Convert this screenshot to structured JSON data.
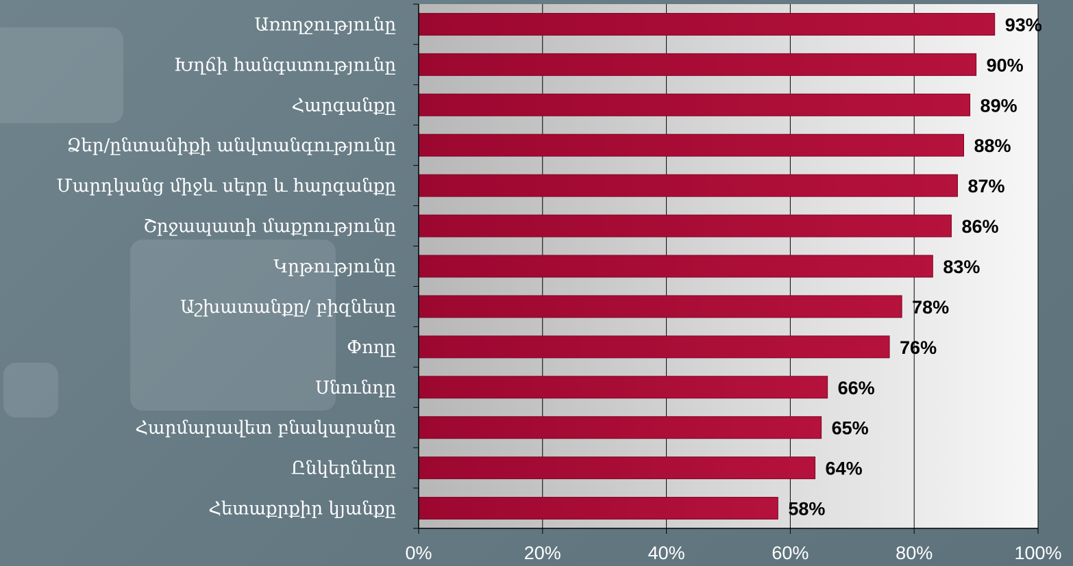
{
  "chart_data": {
    "type": "bar",
    "orientation": "horizontal",
    "categories": [
      "Առողջությունը ",
      "Խղճի հանգստությունը",
      "Հարգանքը",
      "Ձեր/ընտանիքի անվտանգությունը ",
      "Մարդկանց միջև սերը և հարգանքը ",
      "Շրջապատի մաքրությունը",
      "Կրթությունը",
      "Աշխատանքը/ բիզնեսը",
      "Փողը",
      "Սնունդը",
      "Հարմարավետ բնակարանը",
      "Ընկերները ",
      "Հետաքրքիր կյանքը"
    ],
    "values": [
      93,
      90,
      89,
      88,
      87,
      86,
      83,
      78,
      76,
      66,
      65,
      64,
      58
    ],
    "value_labels": [
      "93%",
      "90%",
      "89%",
      "88%",
      "87%",
      "86%",
      "83%",
      "78%",
      "76%",
      "66%",
      "65%",
      "64%",
      "58%"
    ],
    "xlim": [
      0,
      100
    ],
    "xticks": [
      0,
      20,
      40,
      60,
      80,
      100
    ],
    "xtick_labels": [
      "0%",
      "20%",
      "40%",
      "60%",
      "80%",
      "100%"
    ],
    "grid": "vertical",
    "legend": "none",
    "title": "",
    "xlabel": "",
    "ylabel": ""
  },
  "colors": {
    "bar": "#a50a32",
    "bar_dark": "#7d0626",
    "plot_bg_light": "#f4f4f4",
    "plot_bg_dark": "#b9b9b9",
    "gridline": "#000000",
    "label_text": "#ffffff",
    "value_text": "#000000"
  }
}
